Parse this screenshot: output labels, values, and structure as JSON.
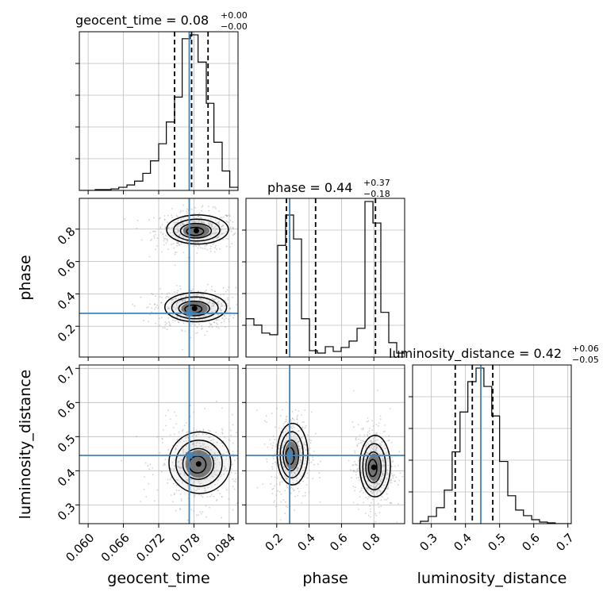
{
  "chart_data": {
    "type": "corner",
    "parameters": [
      "geocent_time",
      "phase",
      "luminosity_distance"
    ],
    "axis_labels": {
      "x": [
        "geocent_time",
        "phase",
        "luminosity_distance"
      ],
      "y": [
        "",
        "phase",
        "luminosity_distance"
      ]
    },
    "ranges": {
      "geocent_time": [
        0.0585,
        0.0855
      ],
      "phase": [
        0.01,
        0.99
      ],
      "luminosity_distance": [
        0.245,
        0.71
      ]
    },
    "ticks": {
      "geocent_time": [
        "0.060",
        "0.066",
        "0.072",
        "0.078",
        "0.084"
      ],
      "phase": [
        "0.2",
        "0.4",
        "0.6",
        "0.8"
      ],
      "luminosity_distance": [
        "0.3",
        "0.4",
        "0.5",
        "0.6",
        "0.7"
      ]
    },
    "truths": {
      "geocent_time": 0.0772,
      "phase": 0.28,
      "luminosity_distance": 0.445
    },
    "titles": [
      {
        "param": "geocent_time",
        "median": "0.08",
        "upper": "+0.00",
        "lower": "−0.00",
        "prefix": "geocent_time = 0.08"
      },
      {
        "param": "phase",
        "median": "0.44",
        "upper": "+0.37",
        "lower": "−0.18",
        "prefix": "phase = 0.44"
      },
      {
        "param": "luminosity_distance",
        "median": "0.42",
        "upper": "+0.06",
        "lower": "−0.05",
        "prefix": "luminosity_distance = 0.42"
      }
    ],
    "quantiles": {
      "geocent_time": [
        0.0747,
        0.0776,
        0.0804
      ],
      "phase": [
        0.26,
        0.44,
        0.81
      ],
      "luminosity_distance": [
        0.37,
        0.42,
        0.48
      ]
    },
    "histograms": {
      "geocent_time": {
        "edges": [
          0.0585,
          0.0598,
          0.0612,
          0.0625,
          0.0639,
          0.0652,
          0.0666,
          0.0679,
          0.0693,
          0.0706,
          0.072,
          0.0733,
          0.0747,
          0.076,
          0.0774,
          0.0787,
          0.0801,
          0.0814,
          0.0828,
          0.0841,
          0.0855
        ],
        "counts": [
          0,
          0,
          1,
          1,
          2,
          4,
          7,
          12,
          22,
          38,
          60,
          88,
          120,
          195,
          200,
          165,
          112,
          62,
          25,
          4
        ]
      },
      "phase": {
        "edges": [
          0.01,
          0.059,
          0.108,
          0.157,
          0.206,
          0.255,
          0.304,
          0.353,
          0.402,
          0.451,
          0.5,
          0.549,
          0.598,
          0.647,
          0.696,
          0.745,
          0.794,
          0.843,
          0.892,
          0.941,
          0.99
        ],
        "counts": [
          48,
          40,
          30,
          28,
          140,
          178,
          148,
          48,
          8,
          5,
          13,
          7,
          12,
          20,
          36,
          195,
          168,
          56,
          18,
          5
        ]
      },
      "luminosity_distance": {
        "edges": [
          0.245,
          0.268,
          0.291,
          0.315,
          0.338,
          0.361,
          0.384,
          0.407,
          0.431,
          0.454,
          0.477,
          0.5,
          0.524,
          0.547,
          0.57,
          0.594,
          0.617,
          0.64,
          0.663,
          0.687,
          0.71
        ],
        "counts": [
          0,
          3,
          9,
          20,
          42,
          90,
          140,
          178,
          195,
          172,
          135,
          78,
          35,
          17,
          10,
          5,
          2,
          1,
          0,
          0
        ]
      }
    },
    "joint_modes": {
      "phase_vs_geocent_time": [
        [
          0.0784,
          0.79
        ],
        [
          0.0781,
          0.31
        ]
      ],
      "luminosity_distance_vs_geocent_time": [
        [
          0.0788,
          0.42
        ]
      ],
      "luminosity_distance_vs_phase": [
        [
          0.29,
          0.445
        ],
        [
          0.8,
          0.41
        ]
      ]
    },
    "colors": {
      "truth": "#4682b4",
      "hist": "#000000",
      "grid": "#bbbbbb"
    },
    "grid": true
  }
}
